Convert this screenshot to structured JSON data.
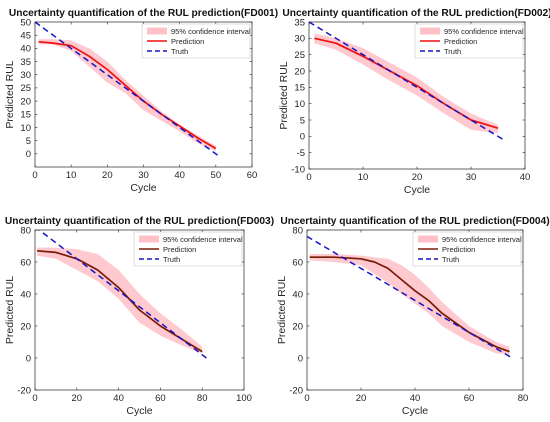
{
  "chart_data": [
    {
      "type": "line",
      "title": "Uncertainty quantification of the RUL prediction(FD001)",
      "xlabel": "Cycle",
      "ylabel": "Predicted RUL",
      "xlim": [
        0,
        60
      ],
      "ylim": [
        -5,
        50
      ],
      "xticks": [
        0,
        10,
        20,
        30,
        40,
        50,
        60
      ],
      "yticks": [
        0,
        5,
        10,
        15,
        20,
        25,
        30,
        35,
        40,
        45,
        50
      ],
      "legend_position": "top-right",
      "series": [
        {
          "name": "95% confidence interval",
          "kind": "band",
          "color": "#ffc0c8",
          "x": [
            1,
            5,
            10,
            15,
            20,
            25,
            30,
            35,
            40,
            45,
            50
          ],
          "lower": [
            41.5,
            41.5,
            39,
            33,
            27,
            23,
            16.5,
            12.5,
            8.5,
            4,
            1
          ],
          "upper": [
            43.5,
            43.5,
            43,
            40,
            35,
            28,
            22,
            16,
            11,
            7,
            3
          ]
        },
        {
          "name": "Prediction",
          "kind": "line",
          "color": "#ee1111",
          "x": [
            1,
            5,
            10,
            15,
            20,
            25,
            30,
            35,
            40,
            45,
            50
          ],
          "y": [
            42.5,
            42,
            41,
            37,
            32,
            26,
            20,
            15,
            10.5,
            6,
            2
          ]
        },
        {
          "name": "Truth",
          "kind": "dashed",
          "color": "#1515c8",
          "x": [
            0,
            51
          ],
          "y": [
            50,
            -1
          ]
        }
      ]
    },
    {
      "type": "line",
      "title": "Uncertainty quantification of the RUL prediction(FD002)",
      "xlabel": "Cycle",
      "ylabel": "Predicted RUL",
      "xlim": [
        0,
        40
      ],
      "ylim": [
        -10,
        35
      ],
      "xticks": [
        0,
        10,
        20,
        30,
        40
      ],
      "yticks": [
        -10,
        -5,
        0,
        5,
        10,
        15,
        20,
        25,
        30,
        35
      ],
      "legend_position": "top-right",
      "series": [
        {
          "name": "95% confidence interval",
          "kind": "band",
          "color": "#ffc0c8",
          "x": [
            1,
            5,
            10,
            15,
            20,
            25,
            30,
            35
          ],
          "lower": [
            28.5,
            26.5,
            22,
            17,
            12.5,
            7,
            2,
            1
          ],
          "upper": [
            31.5,
            30,
            27,
            22.5,
            18,
            12,
            7,
            3.5
          ]
        },
        {
          "name": "Prediction",
          "kind": "line",
          "color": "#ee1111",
          "x": [
            1,
            5,
            10,
            15,
            20,
            25,
            30,
            35
          ],
          "y": [
            30,
            28.5,
            24.5,
            20,
            15.5,
            10,
            5,
            2.5
          ]
        },
        {
          "name": "Truth",
          "kind": "dashed",
          "color": "#1515c8",
          "x": [
            0,
            36
          ],
          "y": [
            35,
            -1
          ]
        }
      ]
    },
    {
      "type": "line",
      "title": "Uncertainty quantification of the RUL prediction(FD003)",
      "xlabel": "Cycle",
      "ylabel": "Predicted RUL",
      "xlim": [
        0,
        100
      ],
      "ylim": [
        -20,
        80
      ],
      "xticks": [
        0,
        20,
        40,
        60,
        80,
        100
      ],
      "yticks": [
        -20,
        0,
        20,
        40,
        60,
        80
      ],
      "legend_position": "top-right",
      "series": [
        {
          "name": "95% confidence interval",
          "kind": "band",
          "color": "#ffc0c8",
          "x": [
            1,
            10,
            20,
            30,
            40,
            50,
            60,
            70,
            80
          ],
          "lower": [
            64,
            62,
            55,
            48,
            37,
            22,
            14,
            8,
            3
          ],
          "upper": [
            69,
            69,
            68,
            65,
            55,
            40,
            28,
            18,
            7
          ]
        },
        {
          "name": "Prediction",
          "kind": "line",
          "color": "#7a1a05",
          "x": [
            1,
            10,
            20,
            30,
            40,
            50,
            60,
            70,
            80
          ],
          "y": [
            67,
            66,
            62,
            55,
            44,
            30,
            20,
            12,
            4
          ]
        },
        {
          "name": "Truth",
          "kind": "dashed",
          "color": "#1515c8",
          "x": [
            0,
            82
          ],
          "y": [
            82,
            0
          ]
        }
      ]
    },
    {
      "type": "line",
      "title": "Uncertainty quantification of the RUL prediction(FD004)",
      "xlabel": "Cycle",
      "ylabel": "Predicted RUL",
      "xlim": [
        0,
        80
      ],
      "ylim": [
        -20,
        80
      ],
      "xticks": [
        0,
        20,
        40,
        60,
        80
      ],
      "yticks": [
        -20,
        0,
        20,
        40,
        60,
        80
      ],
      "legend_position": "top-right",
      "series": [
        {
          "name": "95% confidence interval",
          "kind": "band",
          "color": "#ffc0c8",
          "x": [
            1,
            10,
            20,
            30,
            35,
            40,
            45,
            50,
            60,
            70,
            75
          ],
          "lower": [
            61,
            60,
            58,
            47,
            40,
            34,
            28,
            20,
            10,
            3,
            2
          ],
          "upper": [
            65,
            65,
            64,
            62,
            58,
            52,
            44,
            35,
            20,
            10,
            7
          ]
        },
        {
          "name": "Prediction",
          "kind": "line",
          "color": "#7a1a05",
          "x": [
            1,
            10,
            20,
            25,
            30,
            35,
            40,
            45,
            50,
            60,
            70,
            75
          ],
          "y": [
            63,
            63,
            62,
            60,
            56,
            49,
            42,
            36,
            28,
            16,
            7,
            4
          ]
        },
        {
          "name": "Truth",
          "kind": "dashed",
          "color": "#1515c8",
          "x": [
            0,
            76
          ],
          "y": [
            76,
            0
          ]
        }
      ]
    }
  ]
}
